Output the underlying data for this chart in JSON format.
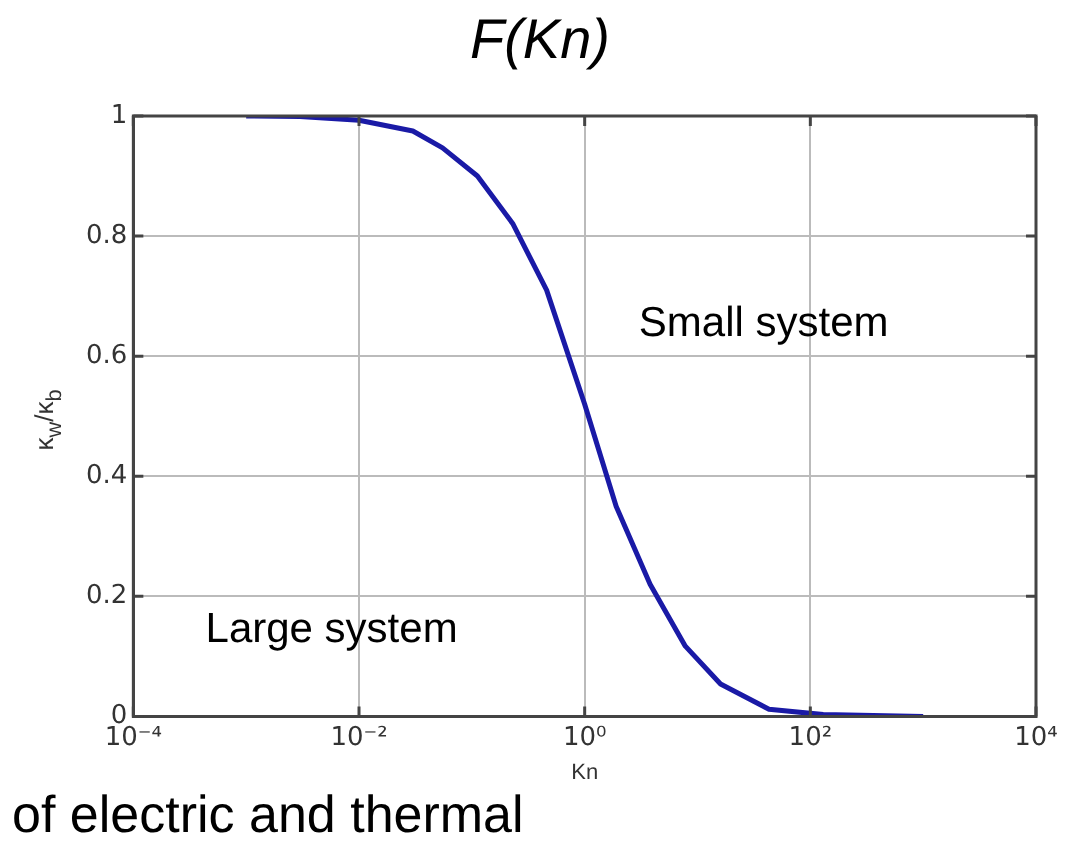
{
  "chart_data": {
    "type": "line",
    "title": "F(Kn)",
    "xlabel": "Kn",
    "ylabel": "κ$_{w}$/κ$_{b}$",
    "series": [
      {
        "color": "#1a1aa6",
        "x": [
          0.001,
          0.003,
          0.01,
          0.03,
          0.055,
          0.112,
          0.23,
          0.46,
          1,
          1.9,
          3.8,
          7.8,
          16,
          43,
          130,
          1000
        ],
        "values": [
          1,
          0.999,
          0.993,
          0.975,
          0.947,
          0.9,
          0.821,
          0.71,
          0.52,
          0.35,
          0.22,
          0.117,
          0.054,
          0.012,
          0.003,
          0
        ]
      }
    ],
    "log": "x",
    "xlim": [
      0.0001,
      10000
    ],
    "xticks": [
      {
        "value": 0.0001,
        "label": "10⁻⁴"
      },
      {
        "value": 0.01,
        "label": "10⁻²"
      },
      {
        "value": 1,
        "label": "10⁰"
      },
      {
        "value": 100,
        "label": "10²"
      },
      {
        "value": 10000,
        "label": "10⁴"
      }
    ],
    "ylim": [
      0,
      1
    ],
    "yticks": [
      0,
      0.2,
      0.4,
      0.6,
      0.8,
      1
    ],
    "grid": true,
    "marker": "none",
    "line_style": "solid",
    "annotations": [
      "Small system",
      "Large system",
      "of electric and thermal"
    ]
  }
}
